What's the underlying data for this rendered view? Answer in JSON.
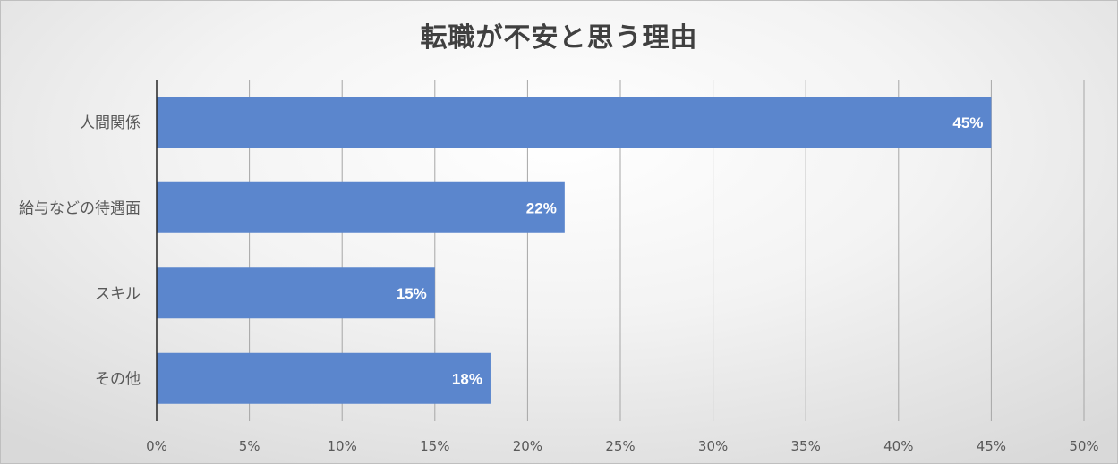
{
  "chart_data": {
    "type": "bar",
    "orientation": "horizontal",
    "title": "転職が不安と思う理由",
    "categories": [
      "人間関係",
      "給与などの待遇面",
      "スキル",
      "その他"
    ],
    "values": [
      45,
      22,
      15,
      18
    ],
    "data_labels": [
      "45%",
      "22%",
      "15%",
      "18%"
    ],
    "xlim": [
      0,
      50
    ],
    "x_ticks": [
      0,
      5,
      10,
      15,
      20,
      25,
      30,
      35,
      40,
      45,
      50
    ],
    "x_tick_labels": [
      "0%",
      "5%",
      "10%",
      "15%",
      "20%",
      "25%",
      "30%",
      "35%",
      "40%",
      "45%",
      "50%"
    ],
    "xlabel": "",
    "ylabel": "",
    "grid": true,
    "legend": "none",
    "bar_color": "#5b86cd"
  }
}
